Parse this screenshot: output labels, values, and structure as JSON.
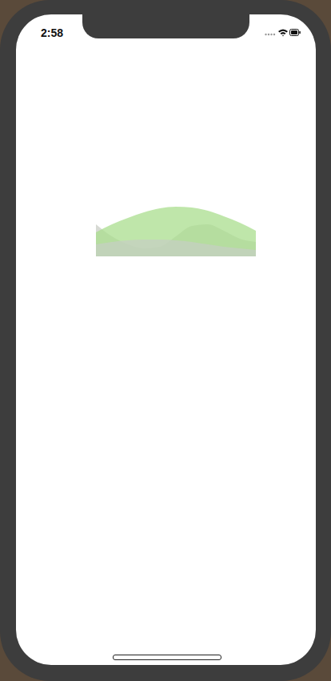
{
  "status_bar": {
    "time": "2:58"
  },
  "chart_data": {
    "type": "area",
    "tick_labels": false,
    "x": [
      0,
      1,
      2,
      3,
      4,
      5,
      6,
      7,
      8,
      9,
      10
    ],
    "xlim": [
      0,
      10
    ],
    "ylim": [
      0,
      65
    ],
    "series": [
      {
        "color": "#c9cdc6",
        "values": [
          40,
          25,
          15,
          10,
          12,
          25,
          38,
          40,
          32,
          22,
          18
        ]
      },
      {
        "color": "#a9de8e",
        "values": [
          30,
          40,
          48,
          55,
          60,
          62,
          61,
          57,
          50,
          42,
          32
        ]
      },
      {
        "color": "#c6cfc2",
        "values": [
          15,
          18,
          20,
          21,
          21,
          20,
          18,
          15,
          12,
          10,
          8
        ]
      }
    ]
  }
}
